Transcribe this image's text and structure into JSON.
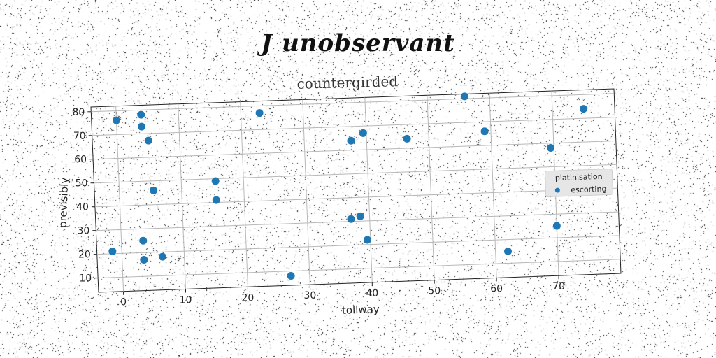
{
  "header": {
    "title": "J unobservant"
  },
  "chart_data": {
    "type": "scatter",
    "title": "countergirded",
    "xlabel": "tollway",
    "ylabel": "previsibly",
    "xlim": [
      -4,
      80
    ],
    "ylim": [
      4,
      82
    ],
    "xticks": [
      0,
      10,
      20,
      30,
      40,
      50,
      60,
      70
    ],
    "yticks": [
      10,
      20,
      30,
      40,
      50,
      60,
      70,
      80
    ],
    "grid": true,
    "legend": {
      "title": "platinisation",
      "placement": "center-right"
    },
    "series": [
      {
        "name": "escorting",
        "color": "#1f77b4",
        "points": [
          [
            0,
            76
          ],
          [
            4,
            78
          ],
          [
            4,
            73
          ],
          [
            5,
            67
          ],
          [
            5.5,
            46
          ],
          [
            -1.5,
            21
          ],
          [
            3.5,
            25
          ],
          [
            3.5,
            17
          ],
          [
            6.5,
            18
          ],
          [
            15.5,
            49
          ],
          [
            15.5,
            41
          ],
          [
            23,
            77
          ],
          [
            27,
            8
          ],
          [
            37,
            31
          ],
          [
            37.5,
            64
          ],
          [
            38.5,
            32
          ],
          [
            39.5,
            67
          ],
          [
            39.5,
            22
          ],
          [
            46.5,
            64
          ],
          [
            56,
            81
          ],
          [
            59,
            66
          ],
          [
            62,
            15
          ],
          [
            69.5,
            58
          ],
          [
            70,
            25
          ],
          [
            75,
            74
          ]
        ]
      }
    ]
  }
}
